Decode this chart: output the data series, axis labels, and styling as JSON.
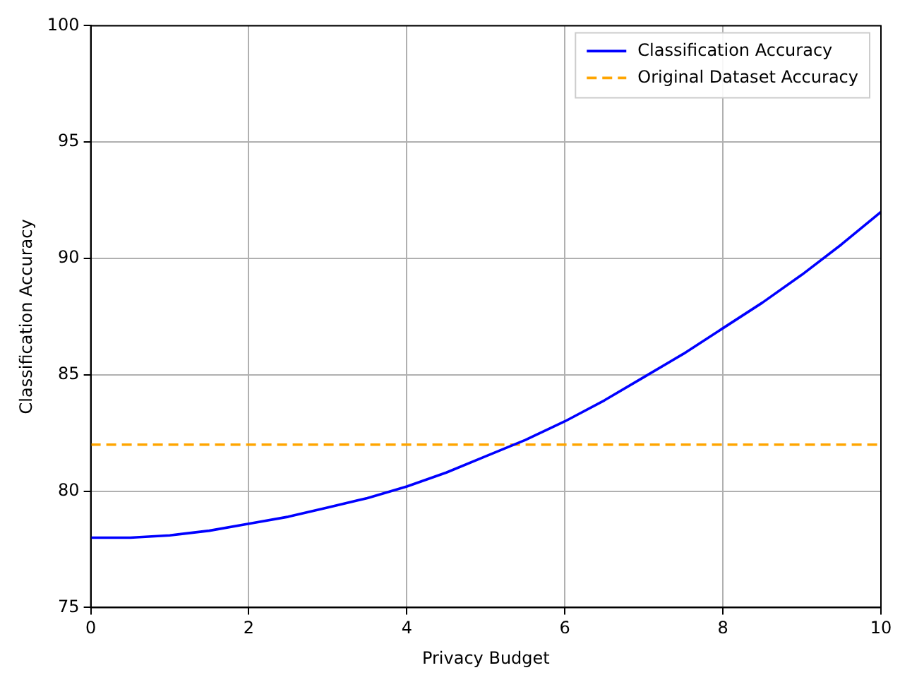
{
  "chart_data": {
    "type": "line",
    "xlabel": "Privacy Budget",
    "ylabel": "Classification Accuracy",
    "series": [
      {
        "name": "Classification Accuracy",
        "color": "#0000ff",
        "x": [
          0,
          0.5,
          1,
          1.5,
          2,
          2.5,
          3,
          3.5,
          4,
          4.5,
          5,
          5.5,
          6,
          6.5,
          7,
          7.5,
          8,
          8.5,
          9,
          9.5,
          10
        ],
        "values": [
          78.0,
          78.0,
          78.1,
          78.3,
          78.6,
          78.9,
          79.3,
          79.7,
          80.2,
          80.8,
          81.5,
          82.2,
          83.0,
          83.9,
          84.9,
          85.9,
          87.0,
          88.1,
          89.3,
          90.6,
          92.0
        ],
        "line_style": "solid"
      },
      {
        "name": "Original Dataset Accuracy",
        "color": "#ffa500",
        "x": [
          0,
          10
        ],
        "values": [
          82,
          82
        ],
        "line_style": "dashed"
      }
    ],
    "xlim": [
      0,
      10
    ],
    "xticks": [
      0,
      2,
      4,
      6,
      8,
      10
    ],
    "ylim": [
      75,
      100
    ],
    "yticks": [
      75,
      80,
      85,
      90,
      95,
      100
    ],
    "grid": true,
    "legend": "top right",
    "marker": "none"
  }
}
